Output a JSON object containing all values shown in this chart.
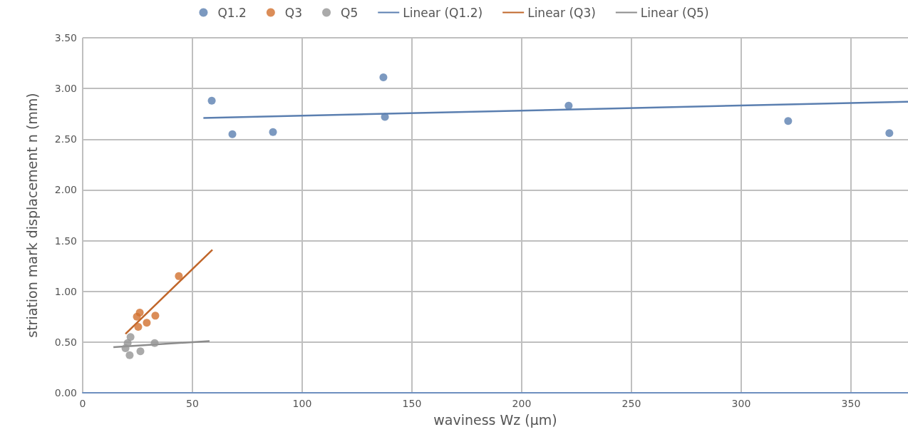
{
  "chart_data": {
    "type": "scatter",
    "xlabel": "waviness Wz (µm)",
    "ylabel": "striation mark displacement n (mm)",
    "xlim": [
      0,
      376
    ],
    "xticks": [
      0,
      50,
      100,
      150,
      200,
      250,
      300,
      350
    ],
    "ylim": [
      0,
      3.5
    ],
    "yticks": [
      {
        "value": 0,
        "label": "0.00"
      },
      {
        "value": 0.5,
        "label": "0.50"
      },
      {
        "value": 1,
        "label": "1.00"
      },
      {
        "value": 1.5,
        "label": "1.50"
      },
      {
        "value": 2,
        "label": "2.00"
      },
      {
        "value": 2.5,
        "label": "2.50"
      },
      {
        "value": 3,
        "label": "3.00"
      },
      {
        "value": 3.5,
        "label": "3.50"
      }
    ],
    "grid": true,
    "legend": "top",
    "marker": "circle",
    "series": [
      {
        "name": "Q1.2",
        "color": "#5b7fb0",
        "x": [
          58.8,
          68.2,
          86.7,
          137,
          137.7,
          221.4,
          321.4,
          367.5
        ],
        "values": [
          2.88,
          2.55,
          2.57,
          3.11,
          2.72,
          2.83,
          2.68,
          2.56
        ]
      },
      {
        "name": "Q3",
        "color": "#d2712e",
        "x": [
          43.8,
          26,
          24.7,
          33.1,
          29.2,
          25.3
        ],
        "values": [
          1.15,
          0.79,
          0.75,
          0.76,
          0.69,
          0.65
        ]
      },
      {
        "name": "Q5",
        "color": "#959595",
        "x": [
          21.8,
          20.5,
          19.5,
          21.4,
          26.3,
          32.8
        ],
        "values": [
          0.55,
          0.49,
          0.44,
          0.37,
          0.41,
          0.49
        ]
      },
      {
        "name": "Linear (Q1.2)",
        "type": "line",
        "marker": "none",
        "color": "#5b7fb0",
        "x": [
          55,
          376
        ],
        "values": [
          2.71,
          2.87
        ]
      },
      {
        "name": "Linear (Q3)",
        "type": "line",
        "marker": "none",
        "color": "#c0662a",
        "x": [
          19.5,
          59.1
        ],
        "values": [
          0.58,
          1.41
        ]
      },
      {
        "name": "Linear (Q5)",
        "type": "line",
        "marker": "none",
        "color": "#8c8c8c",
        "x": [
          14,
          57.8
        ],
        "values": [
          0.45,
          0.51
        ]
      }
    ]
  }
}
